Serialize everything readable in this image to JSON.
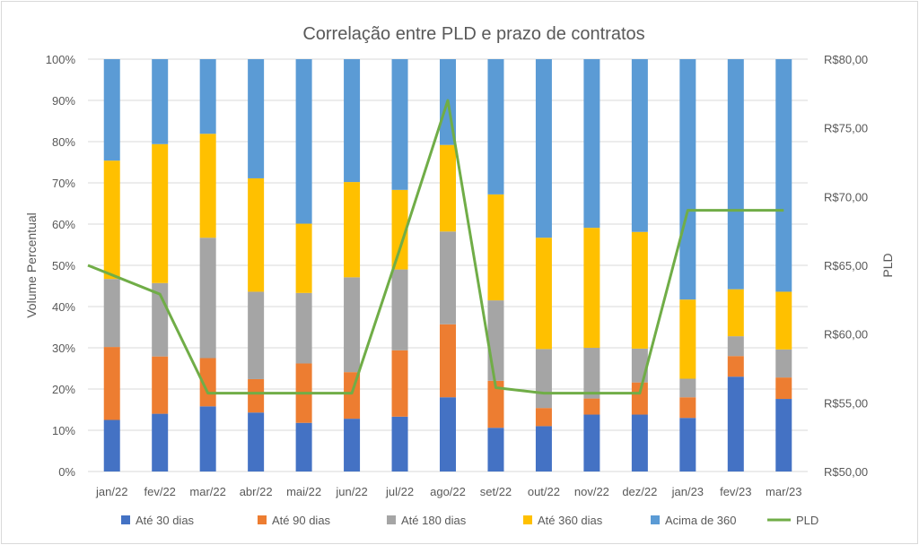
{
  "chart_data": {
    "type": "bar",
    "stacked": true,
    "title": "Correlação entre PLD e prazo de contratos",
    "ylabel": "Volume Percentual",
    "y2label": "PLD",
    "ylim": [
      0,
      100
    ],
    "y2lim": [
      50,
      80
    ],
    "yticks": [
      "0%",
      "10%",
      "20%",
      "30%",
      "40%",
      "50%",
      "60%",
      "70%",
      "80%",
      "90%",
      "100%"
    ],
    "y2ticks": [
      "R$50,00",
      "R$55,00",
      "R$60,00",
      "R$65,00",
      "R$70,00",
      "R$75,00",
      "R$80,00"
    ],
    "grid": true,
    "legend_position": "bottom",
    "categories": [
      "jan/22",
      "fev/22",
      "mar/22",
      "abr/22",
      "mai/22",
      "jun/22",
      "jul/22",
      "ago/22",
      "set/22",
      "out/22",
      "nov/22",
      "dez/22",
      "jan/23",
      "fev/23",
      "mar/23"
    ],
    "series": [
      {
        "name": "Até 30 dias",
        "color": "#4472C4",
        "values": [
          12.5,
          14,
          15.8,
          14.3,
          11.8,
          12.8,
          13.3,
          18,
          10.6,
          11,
          13.8,
          13.8,
          13,
          23,
          17.6
        ]
      },
      {
        "name": "Até 90 dias",
        "color": "#ED7D31",
        "values": [
          17.7,
          13.9,
          11.7,
          8.1,
          14.4,
          11.3,
          16.1,
          17.7,
          11.4,
          4.4,
          3.9,
          7.8,
          5,
          5,
          5.2
        ]
      },
      {
        "name": "Até 180 dias",
        "color": "#A5A5A5",
        "values": [
          16.5,
          17.8,
          29.2,
          21.2,
          17.1,
          23,
          19.6,
          22.5,
          19.5,
          14.3,
          12.3,
          8.2,
          4.5,
          4.8,
          6.8
        ]
      },
      {
        "name": "Até 360 dias",
        "color": "#FFC000",
        "values": [
          28.7,
          33.7,
          25.2,
          27.5,
          16.8,
          23.1,
          19.3,
          21,
          25.7,
          27,
          29.1,
          28.3,
          19.2,
          11.4,
          14
        ]
      },
      {
        "name": "Acima de 360",
        "color": "#5B9BD5",
        "values": [
          24.6,
          20.6,
          18.1,
          28.9,
          39.9,
          29.8,
          31.7,
          20.8,
          32.8,
          43.3,
          40.9,
          41.9,
          58.3,
          55.8,
          56.4
        ]
      }
    ],
    "line_series": {
      "name": "PLD",
      "color": "#70AD47",
      "axis": "secondary",
      "values": [
        65,
        62.9,
        55.7,
        55.7,
        55.7,
        55.7,
        66.2,
        77,
        56.1,
        55.7,
        55.7,
        55.7,
        69,
        69,
        69
      ]
    }
  }
}
